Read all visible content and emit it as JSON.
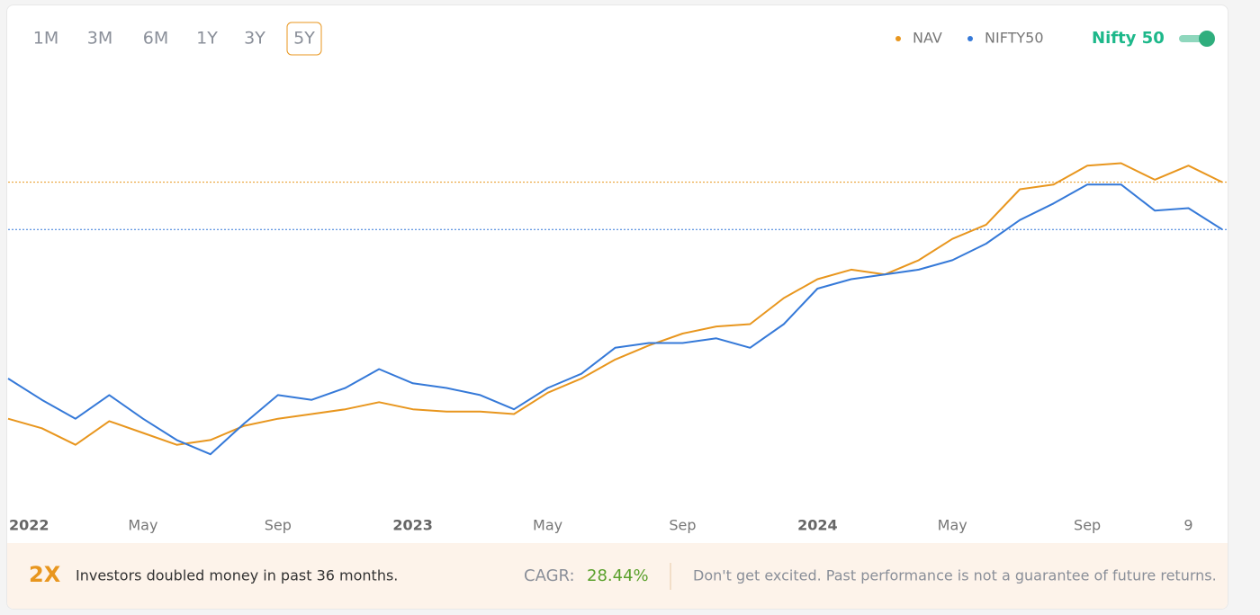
{
  "chart_data": {
    "type": "line",
    "range_buttons": [
      "1M",
      "3M",
      "6M",
      "1Y",
      "3Y",
      "5Y"
    ],
    "active_range": "5Y",
    "toggle_label": "Nifty 50",
    "x": [
      "2022-01",
      "2022-02",
      "2022-03",
      "2022-04",
      "2022-05",
      "2022-06",
      "2022-07",
      "2022-08",
      "2022-09",
      "2022-10",
      "2022-11",
      "2022-12",
      "2023-01",
      "2023-02",
      "2023-03",
      "2023-04",
      "2023-05",
      "2023-06",
      "2023-07",
      "2023-08",
      "2023-09",
      "2023-10",
      "2023-11",
      "2023-12",
      "2024-01",
      "2024-02",
      "2024-03",
      "2024-04",
      "2024-05",
      "2024-06",
      "2024-07",
      "2024-08",
      "2024-09",
      "2024-10",
      "2024-11",
      "2024-12",
      "2025-01"
    ],
    "xlim": [
      "2022-01",
      "2025-01"
    ],
    "xticks": [
      {
        "value": "2022-01",
        "label": "2022"
      },
      {
        "value": "2022-05",
        "label": "May"
      },
      {
        "value": "2022-09",
        "label": "Sep"
      },
      {
        "value": "2023-01",
        "label": "2023"
      },
      {
        "value": "2023-05",
        "label": "May"
      },
      {
        "value": "2023-09",
        "label": "Sep"
      },
      {
        "value": "2024-01",
        "label": "2024"
      },
      {
        "value": "2024-05",
        "label": "May"
      },
      {
        "value": "2024-09",
        "label": "Sep"
      },
      {
        "value": "2024-12",
        "label": "9"
      }
    ],
    "ylim": [
      60,
      250
    ],
    "series": [
      {
        "name": "NAV",
        "color": "#e8961e",
        "values": [
          100,
          96,
          89,
          99,
          94,
          89,
          91,
          97,
          100,
          102,
          104,
          107,
          104,
          103,
          103,
          102,
          111,
          117,
          125,
          131,
          136,
          139,
          140,
          151,
          159,
          163,
          161,
          167,
          176,
          182,
          197,
          199,
          207,
          208,
          201,
          207,
          200
        ]
      },
      {
        "name": "NIFTY50",
        "color": "#3579d8",
        "values": [
          117,
          108,
          100,
          110,
          100,
          91,
          85,
          98,
          110,
          108,
          113,
          121,
          115,
          113,
          110,
          104,
          113,
          119,
          130,
          132,
          132,
          134,
          130,
          140,
          155,
          159,
          161,
          163,
          167,
          174,
          184,
          191,
          199,
          199,
          188,
          189,
          180
        ]
      }
    ],
    "footer": {
      "multiple": "2X",
      "message": "Investors doubled money in past 36 months.",
      "cagr_label": "CAGR:",
      "cagr_value": "28.44%",
      "disclaimer": "Don't get excited. Past performance is not a guarantee of future returns."
    }
  }
}
